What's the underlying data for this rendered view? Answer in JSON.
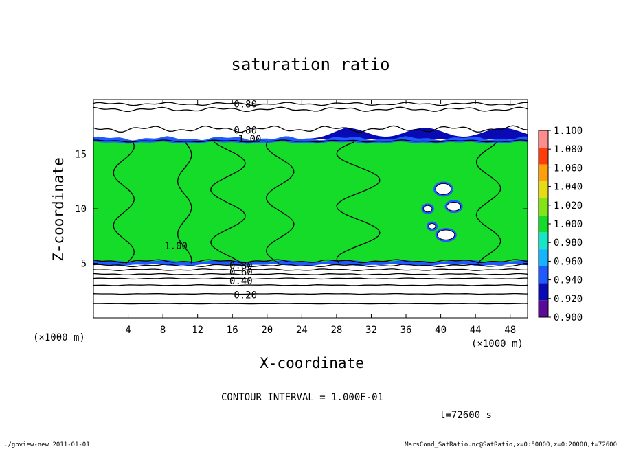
{
  "chart_data": {
    "type": "contour",
    "title": "saturation ratio",
    "xlabel": "X-coordinate",
    "ylabel": "Z-coordinate",
    "x_unit_label": "(×1000 m)",
    "y_unit_label": "(×1000 m)",
    "x_ticks": [
      4,
      8,
      12,
      16,
      20,
      24,
      28,
      32,
      36,
      40,
      44,
      48
    ],
    "y_ticks": [
      5,
      10,
      15
    ],
    "xlim": [
      0,
      50
    ],
    "ylim": [
      0,
      20
    ],
    "contour_interval_text": "CONTOUR INTERVAL = 1.000E-01",
    "time_label": "t=72600 s",
    "contour_labels": [
      {
        "text": "0.80",
        "x": 17.5,
        "z": 19.6
      },
      {
        "text": "0.80",
        "x": 17.5,
        "z": 17.2
      },
      {
        "text": "1.00",
        "x": 18.0,
        "z": 16.4
      },
      {
        "text": "1.00",
        "x": 9.5,
        "z": 6.6
      },
      {
        "text": "0.80",
        "x": 17.0,
        "z": 4.8
      },
      {
        "text": "0.60",
        "x": 17.0,
        "z": 4.2
      },
      {
        "text": "0.40",
        "x": 17.0,
        "z": 3.4
      },
      {
        "text": "0.20",
        "x": 17.5,
        "z": 2.1
      }
    ],
    "colorbar": {
      "levels": [
        0.9,
        0.92,
        0.94,
        0.96,
        0.98,
        1.0,
        1.02,
        1.04,
        1.06,
        1.08,
        1.1
      ],
      "labels": [
        "1.100",
        "1.080",
        "1.060",
        "1.040",
        "1.020",
        "1.000",
        "0.980",
        "0.960",
        "0.940",
        "0.920",
        "0.900"
      ],
      "colors": [
        "#5a0a96",
        "#0a0ab4",
        "#1e5aff",
        "#14b4ff",
        "#14e6c8",
        "#14dc28",
        "#82e614",
        "#e6dc14",
        "#ffa00a",
        "#ff3c0a",
        "#ff8c8c"
      ]
    },
    "saturated_region": {
      "z_bottom": 5.0,
      "z_top": 16.1,
      "value": 1.0
    },
    "grid": false
  },
  "footer": {
    "left": "./gpview-new  2011-01-01",
    "right": "MarsCond_SatRatio.nc@SatRatio,x=0:50000,z=0:20000,t=72600"
  }
}
